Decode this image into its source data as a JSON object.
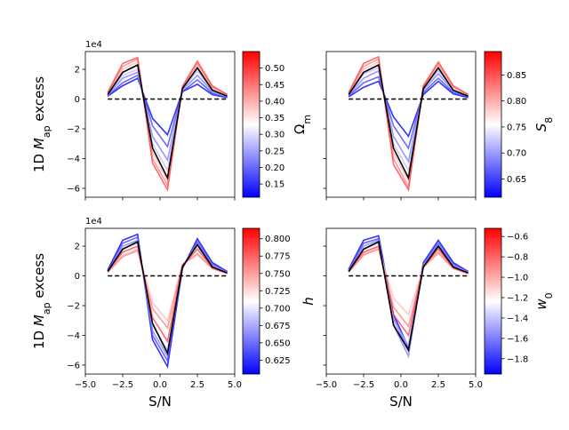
{
  "figure": {
    "common_xlabel": "S/N",
    "common_ylabel": "1D M_ap excess",
    "ylabel_parts": {
      "prefix": "1D ",
      "symbol": "M",
      "subscript": "ap",
      "suffix": " excess"
    },
    "offset_text": "1e4"
  },
  "chart_data": [
    {
      "type": "line",
      "panel": "top-left",
      "title": "",
      "xlabel": "",
      "ylabel": "1D M_ap excess",
      "xlim": [
        -5.0,
        5.0
      ],
      "ylim": [
        -6.6,
        3.2
      ],
      "y_scale_factor": 10000,
      "x_ticks": [
        -5.0,
        -2.5,
        0.0,
        2.5,
        5.0
      ],
      "x_tick_labels": [],
      "y_ticks": [
        -6,
        -4,
        -2,
        0,
        2
      ],
      "y_tick_labels": [
        "−6",
        "−4",
        "−2",
        "0",
        "2"
      ],
      "x": [
        -3.5,
        -2.5,
        -1.5,
        -0.5,
        0.5,
        1.5,
        2.5,
        3.5,
        4.5
      ],
      "fiducial": {
        "color": "#000000",
        "values": [
          0.3,
          1.8,
          2.3,
          -3.3,
          -5.3,
          0.7,
          2.1,
          0.6,
          0.2
        ]
      },
      "zero_line": {
        "style": "dashed",
        "x_range": [
          -3.5,
          4.5
        ],
        "y": 0
      },
      "series": [
        {
          "color": "#0000ff",
          "values": [
            0.2,
            0.9,
            1.4,
            -1.3,
            -2.4,
            0.5,
            1.0,
            0.3,
            0.1
          ]
        },
        {
          "color": "#4646ff",
          "values": [
            0.2,
            1.1,
            1.6,
            -1.8,
            -3.2,
            0.5,
            1.3,
            0.4,
            0.1
          ]
        },
        {
          "color": "#8080ff",
          "values": [
            0.25,
            1.4,
            1.8,
            -2.5,
            -4.1,
            0.6,
            1.6,
            0.5,
            0.15
          ]
        },
        {
          "color": "#bdbdff",
          "values": [
            0.3,
            1.6,
            2.0,
            -3.0,
            -4.8,
            0.65,
            1.9,
            0.55,
            0.2
          ]
        },
        {
          "color": "#ffbdbd",
          "values": [
            0.35,
            2.0,
            2.5,
            -3.6,
            -5.5,
            0.75,
            2.2,
            0.7,
            0.25
          ]
        },
        {
          "color": "#ff8080",
          "values": [
            0.4,
            2.2,
            2.7,
            -4.0,
            -5.8,
            0.8,
            2.4,
            0.8,
            0.3
          ]
        },
        {
          "color": "#ff4646",
          "values": [
            0.45,
            2.4,
            2.8,
            -4.3,
            -6.1,
            0.85,
            2.55,
            0.9,
            0.3
          ]
        }
      ],
      "colorbar": {
        "label": "Ω_m",
        "label_main": "Ω",
        "label_sub": "m",
        "colormap": "bwr",
        "range": [
          0.11,
          0.55
        ],
        "ticks": [
          0.15,
          0.2,
          0.25,
          0.3,
          0.35,
          0.4,
          0.45,
          0.5
        ],
        "tick_labels": [
          "0.15",
          "0.20",
          "0.25",
          "0.30",
          "0.35",
          "0.40",
          "0.45",
          "0.50"
        ]
      }
    },
    {
      "type": "line",
      "panel": "top-right",
      "title": "",
      "xlabel": "",
      "ylabel": "",
      "xlim": [
        -5.0,
        5.0
      ],
      "ylim": [
        -6.6,
        3.2
      ],
      "y_scale_factor": 10000,
      "x_ticks": [
        -5.0,
        -2.5,
        0.0,
        2.5,
        5.0
      ],
      "x_tick_labels": [],
      "y_ticks": [
        -6,
        -4,
        -2,
        0,
        2
      ],
      "y_tick_labels": [],
      "x": [
        -3.5,
        -2.5,
        -1.5,
        -0.5,
        0.5,
        1.5,
        2.5,
        3.5,
        4.5
      ],
      "fiducial": {
        "color": "#000000",
        "values": [
          0.3,
          1.8,
          2.3,
          -3.3,
          -5.3,
          0.7,
          2.1,
          0.6,
          0.2
        ]
      },
      "zero_line": {
        "style": "dashed",
        "x_range": [
          -3.5,
          4.5
        ],
        "y": 0
      },
      "series": [
        {
          "color": "#0000ff",
          "values": [
            0.15,
            0.8,
            1.2,
            -1.2,
            -2.5,
            0.3,
            1.2,
            0.35,
            0.1
          ]
        },
        {
          "color": "#4646ff",
          "values": [
            0.2,
            1.1,
            1.5,
            -1.8,
            -3.3,
            0.45,
            1.4,
            0.45,
            0.15
          ]
        },
        {
          "color": "#8080ff",
          "values": [
            0.25,
            1.4,
            1.9,
            -2.5,
            -4.2,
            0.6,
            1.7,
            0.55,
            0.2
          ]
        },
        {
          "color": "#bdbdff",
          "values": [
            0.3,
            1.7,
            2.1,
            -3.0,
            -4.8,
            0.7,
            1.9,
            0.6,
            0.2
          ]
        },
        {
          "color": "#ffbdbd",
          "values": [
            0.35,
            2.0,
            2.5,
            -3.6,
            -5.5,
            0.8,
            2.2,
            0.75,
            0.25
          ]
        },
        {
          "color": "#ff8080",
          "values": [
            0.4,
            2.2,
            2.7,
            -4.0,
            -5.9,
            0.85,
            2.35,
            0.85,
            0.3
          ]
        },
        {
          "color": "#ff4646",
          "values": [
            0.45,
            2.4,
            2.85,
            -4.4,
            -6.1,
            0.9,
            2.5,
            0.9,
            0.3
          ]
        }
      ],
      "colorbar": {
        "label": "S_8",
        "label_main": "S",
        "label_sub": "8",
        "colormap": "bwr",
        "range": [
          0.615,
          0.895
        ],
        "ticks": [
          0.65,
          0.7,
          0.75,
          0.8,
          0.85
        ],
        "tick_labels": [
          "0.65",
          "0.70",
          "0.75",
          "0.80",
          "0.85"
        ]
      }
    },
    {
      "type": "line",
      "panel": "bottom-left",
      "title": "",
      "xlabel": "S/N",
      "ylabel": "1D M_ap excess",
      "xlim": [
        -5.0,
        5.0
      ],
      "ylim": [
        -6.6,
        3.2
      ],
      "y_scale_factor": 10000,
      "x_ticks": [
        -5.0,
        -2.5,
        0.0,
        2.5,
        5.0
      ],
      "x_tick_labels": [
        "−5.0",
        "−2.5",
        "0.0",
        "2.5",
        "5.0"
      ],
      "y_ticks": [
        -6,
        -4,
        -2,
        0,
        2
      ],
      "y_tick_labels": [
        "−6",
        "−4",
        "−2",
        "0",
        "2"
      ],
      "x": [
        -3.5,
        -2.5,
        -1.5,
        -0.5,
        0.5,
        1.5,
        2.5,
        3.5,
        4.5
      ],
      "fiducial": {
        "color": "#000000",
        "values": [
          0.3,
          1.8,
          2.3,
          -3.2,
          -5.2,
          0.6,
          2.1,
          0.6,
          0.2
        ]
      },
      "zero_line": {
        "style": "dashed",
        "x_range": [
          -3.5,
          4.5
        ],
        "y": 0
      },
      "series": [
        {
          "color": "#0000ff",
          "values": [
            0.4,
            2.4,
            2.8,
            -4.3,
            -6.1,
            0.5,
            2.5,
            0.9,
            0.3
          ]
        },
        {
          "color": "#4646ff",
          "values": [
            0.35,
            2.2,
            2.6,
            -4.0,
            -5.7,
            0.55,
            2.3,
            0.8,
            0.3
          ]
        },
        {
          "color": "#8080ff",
          "values": [
            0.3,
            2.0,
            2.4,
            -3.7,
            -5.4,
            0.6,
            2.2,
            0.7,
            0.25
          ]
        },
        {
          "color": "#bdbdff",
          "values": [
            0.3,
            1.8,
            2.2,
            -3.3,
            -5.0,
            0.65,
            2.0,
            0.6,
            0.2
          ]
        },
        {
          "color": "#ffbdbd",
          "values": [
            0.25,
            1.4,
            1.8,
            -1.8,
            -3.0,
            0.8,
            1.4,
            0.5,
            0.15
          ]
        },
        {
          "color": "#ff8080",
          "values": [
            0.25,
            1.3,
            1.7,
            -2.2,
            -3.5,
            0.75,
            1.5,
            0.5,
            0.15
          ]
        },
        {
          "color": "#ff4646",
          "values": [
            0.3,
            1.6,
            2.0,
            -2.8,
            -4.4,
            0.7,
            1.8,
            0.55,
            0.2
          ]
        }
      ],
      "colorbar": {
        "label": "h",
        "label_main": "h",
        "label_sub": "",
        "colormap": "bwr",
        "range": [
          0.605,
          0.815
        ],
        "ticks": [
          0.625,
          0.65,
          0.675,
          0.7,
          0.725,
          0.75,
          0.775,
          0.8
        ],
        "tick_labels": [
          "0.625",
          "0.650",
          "0.675",
          "0.700",
          "0.725",
          "0.750",
          "0.775",
          "0.800"
        ]
      }
    },
    {
      "type": "line",
      "panel": "bottom-right",
      "title": "",
      "xlabel": "S/N",
      "ylabel": "",
      "xlim": [
        -5.0,
        5.0
      ],
      "ylim": [
        -6.6,
        3.2
      ],
      "y_scale_factor": 10000,
      "x_ticks": [
        -5.0,
        -2.5,
        0.0,
        2.5,
        5.0
      ],
      "x_tick_labels": [
        "−5.0",
        "−2.5",
        "0.0",
        "2.5",
        "5.0"
      ],
      "y_ticks": [
        -6,
        -4,
        -2,
        0,
        2
      ],
      "y_tick_labels": [],
      "x": [
        -3.5,
        -2.5,
        -1.5,
        -0.5,
        0.5,
        1.5,
        2.5,
        3.5,
        4.5
      ],
      "fiducial": {
        "color": "#000000",
        "values": [
          0.3,
          1.8,
          2.3,
          -3.3,
          -5.0,
          0.6,
          2.0,
          0.6,
          0.2
        ]
      },
      "zero_line": {
        "style": "dashed",
        "x_range": [
          -3.5,
          4.5
        ],
        "y": 0
      },
      "series": [
        {
          "color": "#0000ff",
          "values": [
            0.45,
            2.4,
            2.7,
            -2.6,
            -4.8,
            0.9,
            2.4,
            0.9,
            0.3
          ]
        },
        {
          "color": "#4646ff",
          "values": [
            0.4,
            2.2,
            2.5,
            -2.9,
            -5.0,
            0.8,
            2.2,
            0.8,
            0.3
          ]
        },
        {
          "color": "#8080ff",
          "values": [
            0.35,
            2.0,
            2.4,
            -3.3,
            -5.4,
            0.75,
            2.1,
            0.7,
            0.25
          ]
        },
        {
          "color": "#bdbdff",
          "values": [
            0.3,
            1.8,
            2.2,
            -3.0,
            -4.7,
            0.65,
            1.9,
            0.6,
            0.2
          ]
        },
        {
          "color": "#ffbdbd",
          "values": [
            0.25,
            1.5,
            1.9,
            -1.5,
            -2.6,
            0.55,
            1.5,
            0.5,
            0.15
          ]
        },
        {
          "color": "#ff8080",
          "values": [
            0.25,
            1.4,
            1.8,
            -2.1,
            -3.4,
            0.6,
            1.6,
            0.5,
            0.15
          ]
        },
        {
          "color": "#ff4646",
          "values": [
            0.3,
            1.6,
            2.0,
            -2.6,
            -4.0,
            0.65,
            1.8,
            0.55,
            0.2
          ]
        }
      ],
      "colorbar": {
        "label": "w_0",
        "label_main": "w",
        "label_sub": "0",
        "colormap": "bwr",
        "range": [
          -1.95,
          -0.52
        ],
        "ticks": [
          -1.8,
          -1.6,
          -1.4,
          -1.2,
          -1.0,
          -0.8,
          -0.6
        ],
        "tick_labels": [
          "−1.8",
          "−1.6",
          "−1.4",
          "−1.2",
          "−1.0",
          "−0.8",
          "−0.6"
        ]
      }
    }
  ]
}
